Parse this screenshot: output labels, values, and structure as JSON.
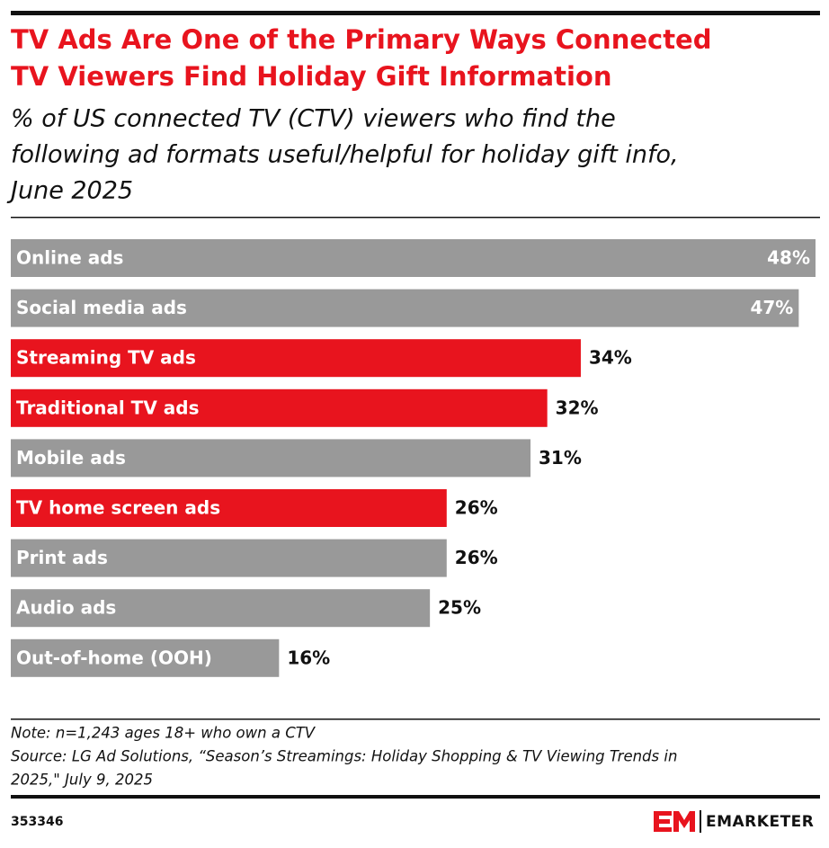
{
  "chart_data": {
    "type": "bar",
    "orientation": "horizontal",
    "title": [
      "TV Ads Are One of the Primary Ways Connected",
      "TV Viewers Find Holiday Gift Information"
    ],
    "subtitle": [
      "% of US connected TV (CTV) viewers who find the",
      "following ad formats useful/helpful for holiday gift info,",
      "June 2025"
    ],
    "categories": [
      "Online ads",
      "Social media ads",
      "Streaming TV ads",
      "Traditional TV ads",
      "Mobile ads",
      "TV home screen ads",
      "Print ads",
      "Audio ads",
      "Out-of-home (OOH)"
    ],
    "values": [
      48,
      47,
      34,
      32,
      31,
      26,
      26,
      25,
      16
    ],
    "value_labels": [
      "48%",
      "47%",
      "34%",
      "32%",
      "31%",
      "26%",
      "26%",
      "25%",
      "16%"
    ],
    "colors": [
      "#999999",
      "#999999",
      "#e8141e",
      "#e8141e",
      "#999999",
      "#e8141e",
      "#999999",
      "#999999",
      "#999999"
    ],
    "note": [
      "Note: n=1,243 ages 18+ who own a CTV",
      "Source: LG Ad Solutions, “Season’s Streamings: Holiday Shopping & TV Viewing Trends in",
      "2025,\" July 9, 2025"
    ],
    "chart_id": "353346",
    "brand": "EMARKETER"
  }
}
